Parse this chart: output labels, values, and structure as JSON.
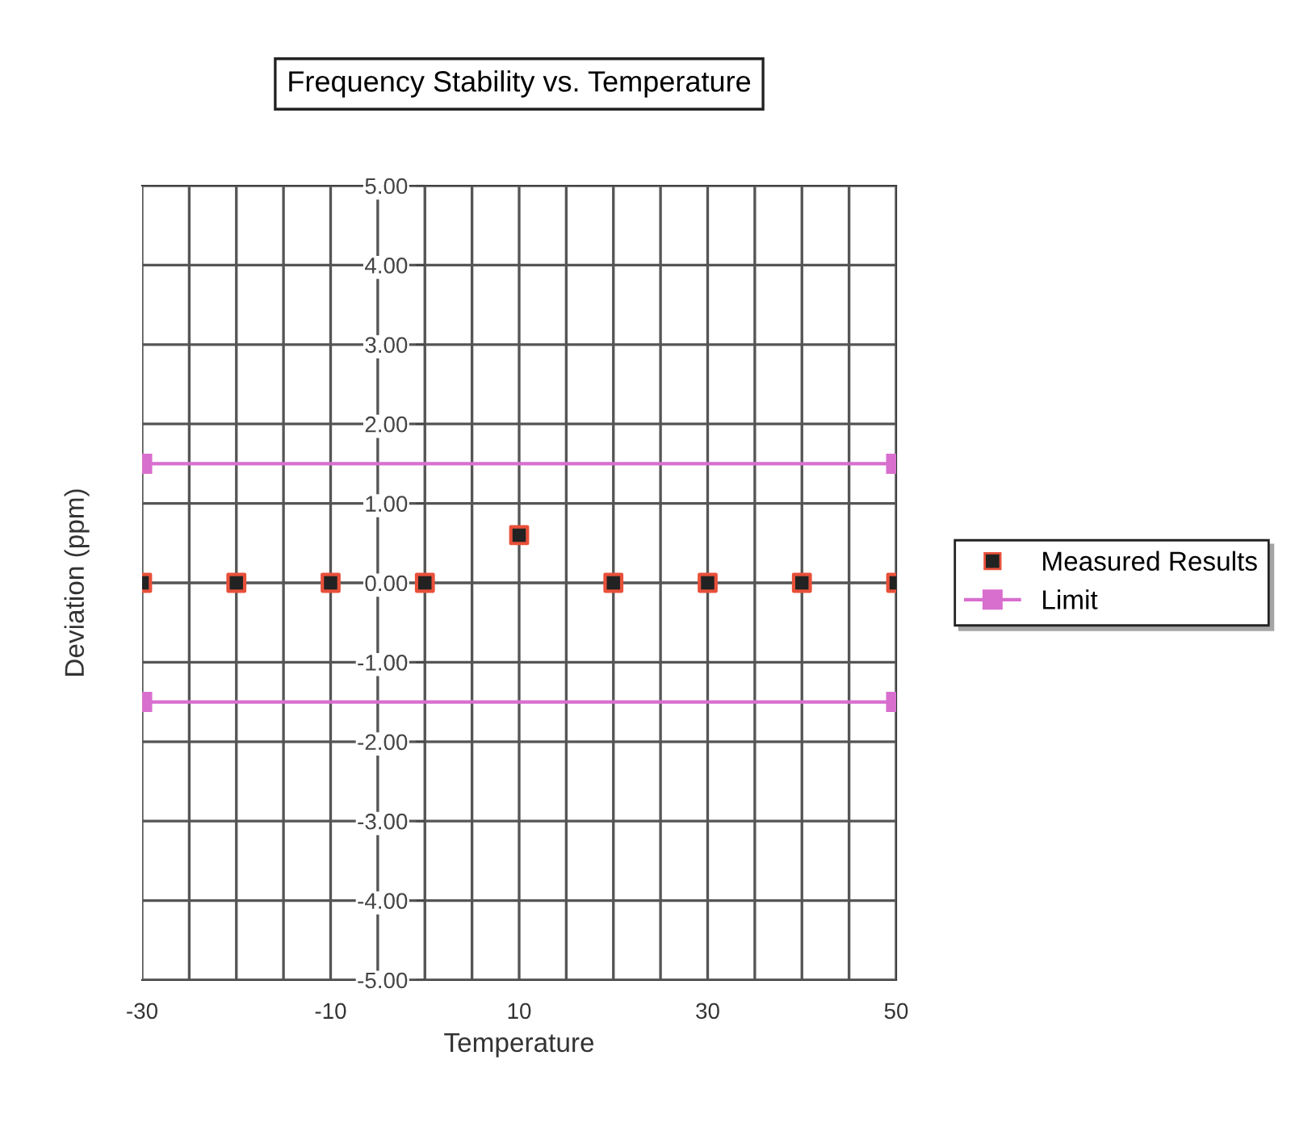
{
  "chart_data": {
    "type": "scatter",
    "title": "Frequency Stability vs. Temperature",
    "xlabel": "Temperature",
    "ylabel": "Deviation (ppm)",
    "series": [
      {
        "name": "Measured Results",
        "color": "#222222",
        "marker": "square",
        "x": [
          -30,
          -20,
          -10,
          0,
          10,
          20,
          30,
          40,
          50
        ],
        "values": [
          0,
          0,
          0,
          0,
          0.6,
          0,
          0,
          0,
          0
        ]
      },
      {
        "name": "Limit",
        "type": "line",
        "color": "#d86fcf",
        "marker": "square",
        "x": [
          -30,
          50
        ],
        "values": [
          1.5,
          1.5
        ]
      },
      {
        "type": "line",
        "color": "#d86fcf",
        "marker": "square",
        "x": [
          -30,
          50
        ],
        "values": [
          -1.5,
          -1.5
        ]
      }
    ],
    "xlim": [
      -30,
      50
    ],
    "ylim": [
      -5,
      5
    ],
    "xticks": [
      -30,
      {
        "value": -25,
        "label": null
      },
      {
        "value": -20,
        "label": null
      },
      {
        "value": -15,
        "label": null
      },
      -10,
      {
        "value": -5,
        "label": null
      },
      {
        "value": 0,
        "label": null
      },
      {
        "value": 5,
        "label": null
      },
      10,
      {
        "value": 15,
        "label": null
      },
      {
        "value": 20,
        "label": null
      },
      {
        "value": 25,
        "label": null
      },
      30,
      {
        "value": 35,
        "label": null
      },
      {
        "value": 40,
        "label": null
      },
      {
        "value": 45,
        "label": null
      },
      50
    ],
    "yticks": [
      {
        "value": 5,
        "label": "5.00"
      },
      {
        "value": 4,
        "label": "4.00"
      },
      {
        "value": 3,
        "label": "3.00"
      },
      {
        "value": 2,
        "label": "2.00"
      },
      {
        "value": 1,
        "label": "1.00"
      },
      {
        "value": 0,
        "label": "0.00"
      },
      {
        "value": -1,
        "label": "-1.00"
      },
      {
        "value": -2,
        "label": "-2.00"
      },
      {
        "value": -3,
        "label": "-3.00"
      },
      {
        "value": -4,
        "label": "-4.00"
      },
      {
        "value": -5,
        "label": "-5.00"
      }
    ],
    "grid": true,
    "legend": "right"
  }
}
